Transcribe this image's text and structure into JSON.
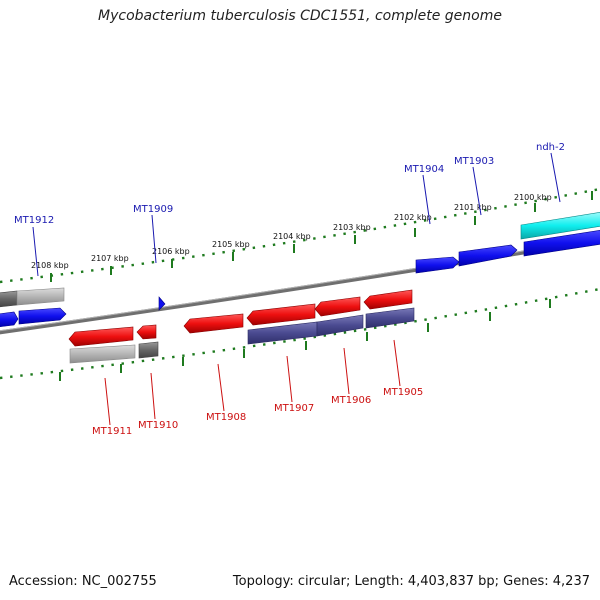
{
  "title": "Mycobacterium tuberculosis CDC1551, complete genome",
  "footer": {
    "accession": "Accession: NC_002755",
    "summary": "Topology: circular; Length: 4,403,837 bp; Genes: 4,237"
  },
  "colors": {
    "backbone": "#777777",
    "tick": "#1e7a1e",
    "forward_label": "#1a1ab0",
    "reverse_label": "#cc1010",
    "blue_gene": "#1010ee",
    "red_gene": "#ee1010",
    "cyan_gene": "#10eeee",
    "grey_gene": "#aaaaaa",
    "dark_grey_gene": "#666666",
    "purple_gene": "#4a4a90"
  },
  "scale_labels": [
    "2108 kbp",
    "2107 kbp",
    "2106 kbp",
    "2105 kbp",
    "2104 kbp",
    "2103 kbp",
    "2102 kbp",
    "2101 kbp",
    "2100 kbp"
  ],
  "forward_genes": [
    "MT1912",
    "MT1909",
    "MT1904",
    "MT1903",
    "ndh-2"
  ],
  "reverse_genes": [
    "MT1911",
    "MT1910",
    "MT1908",
    "MT1907",
    "MT1906",
    "MT1905"
  ]
}
